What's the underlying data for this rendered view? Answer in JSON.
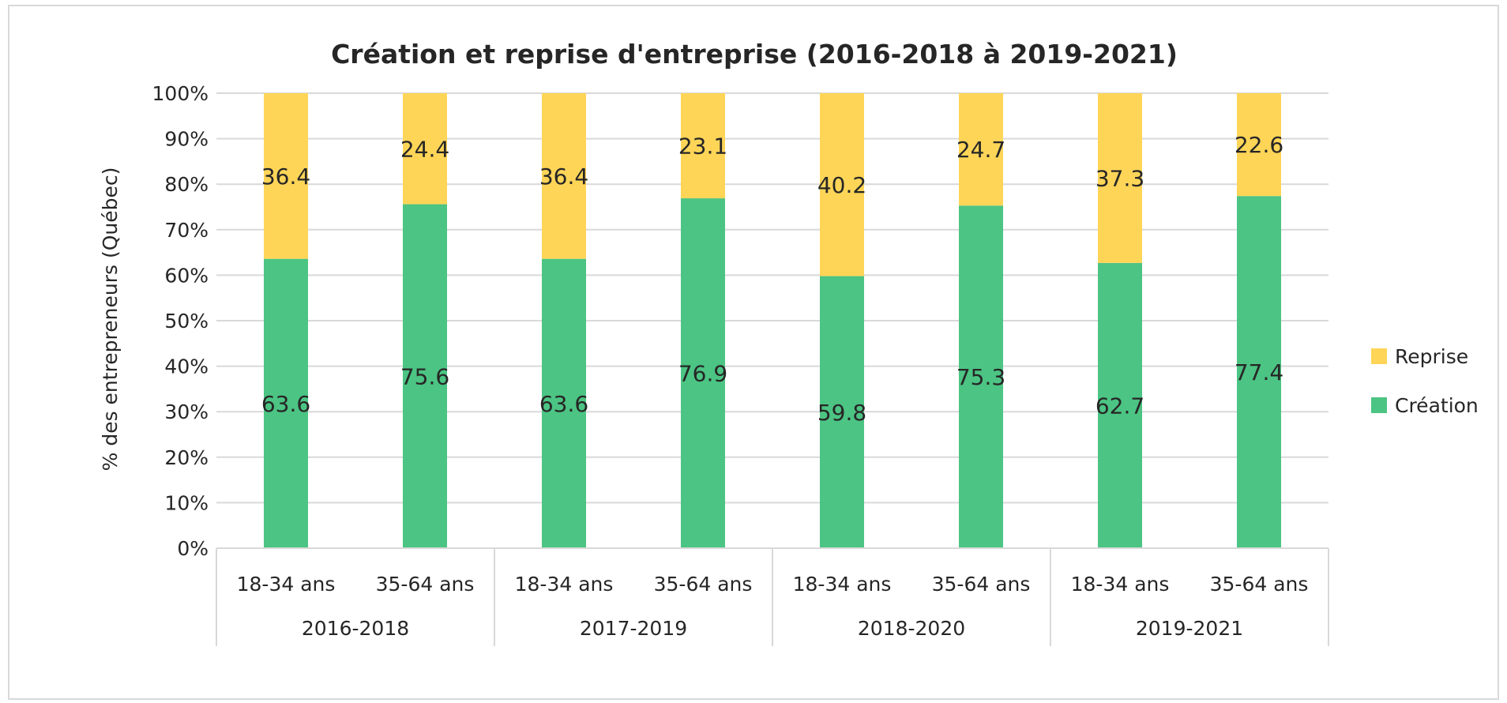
{
  "chart_data": {
    "type": "bar",
    "stacked": true,
    "title": "Création et reprise d'entreprise (2016-2018 à 2019-2021)",
    "ylabel": "% des entrepreneurs (Québec)",
    "xlabel": "",
    "ylim": [
      0,
      100
    ],
    "yticks": [
      "0%",
      "10%",
      "20%",
      "30%",
      "40%",
      "50%",
      "60%",
      "70%",
      "80%",
      "90%",
      "100%"
    ],
    "grid": true,
    "legend_position": "right",
    "groups": [
      {
        "label": "2016-2018",
        "categories": [
          "18-34 ans",
          "35-64 ans"
        ]
      },
      {
        "label": "2017-2019",
        "categories": [
          "18-34 ans",
          "35-64 ans"
        ]
      },
      {
        "label": "2018-2020",
        "categories": [
          "18-34 ans",
          "35-64 ans"
        ]
      },
      {
        "label": "2019-2021",
        "categories": [
          "18-34 ans",
          "35-64 ans"
        ]
      }
    ],
    "series": [
      {
        "name": "Création",
        "color": "#4cc483",
        "values": [
          63.6,
          75.6,
          63.6,
          76.9,
          59.8,
          75.3,
          62.7,
          77.4
        ]
      },
      {
        "name": "Reprise",
        "color": "#ffd558",
        "values": [
          36.4,
          24.4,
          36.4,
          23.1,
          40.2,
          24.7,
          37.3,
          22.6
        ]
      }
    ],
    "legend": [
      "Reprise",
      "Création"
    ]
  }
}
